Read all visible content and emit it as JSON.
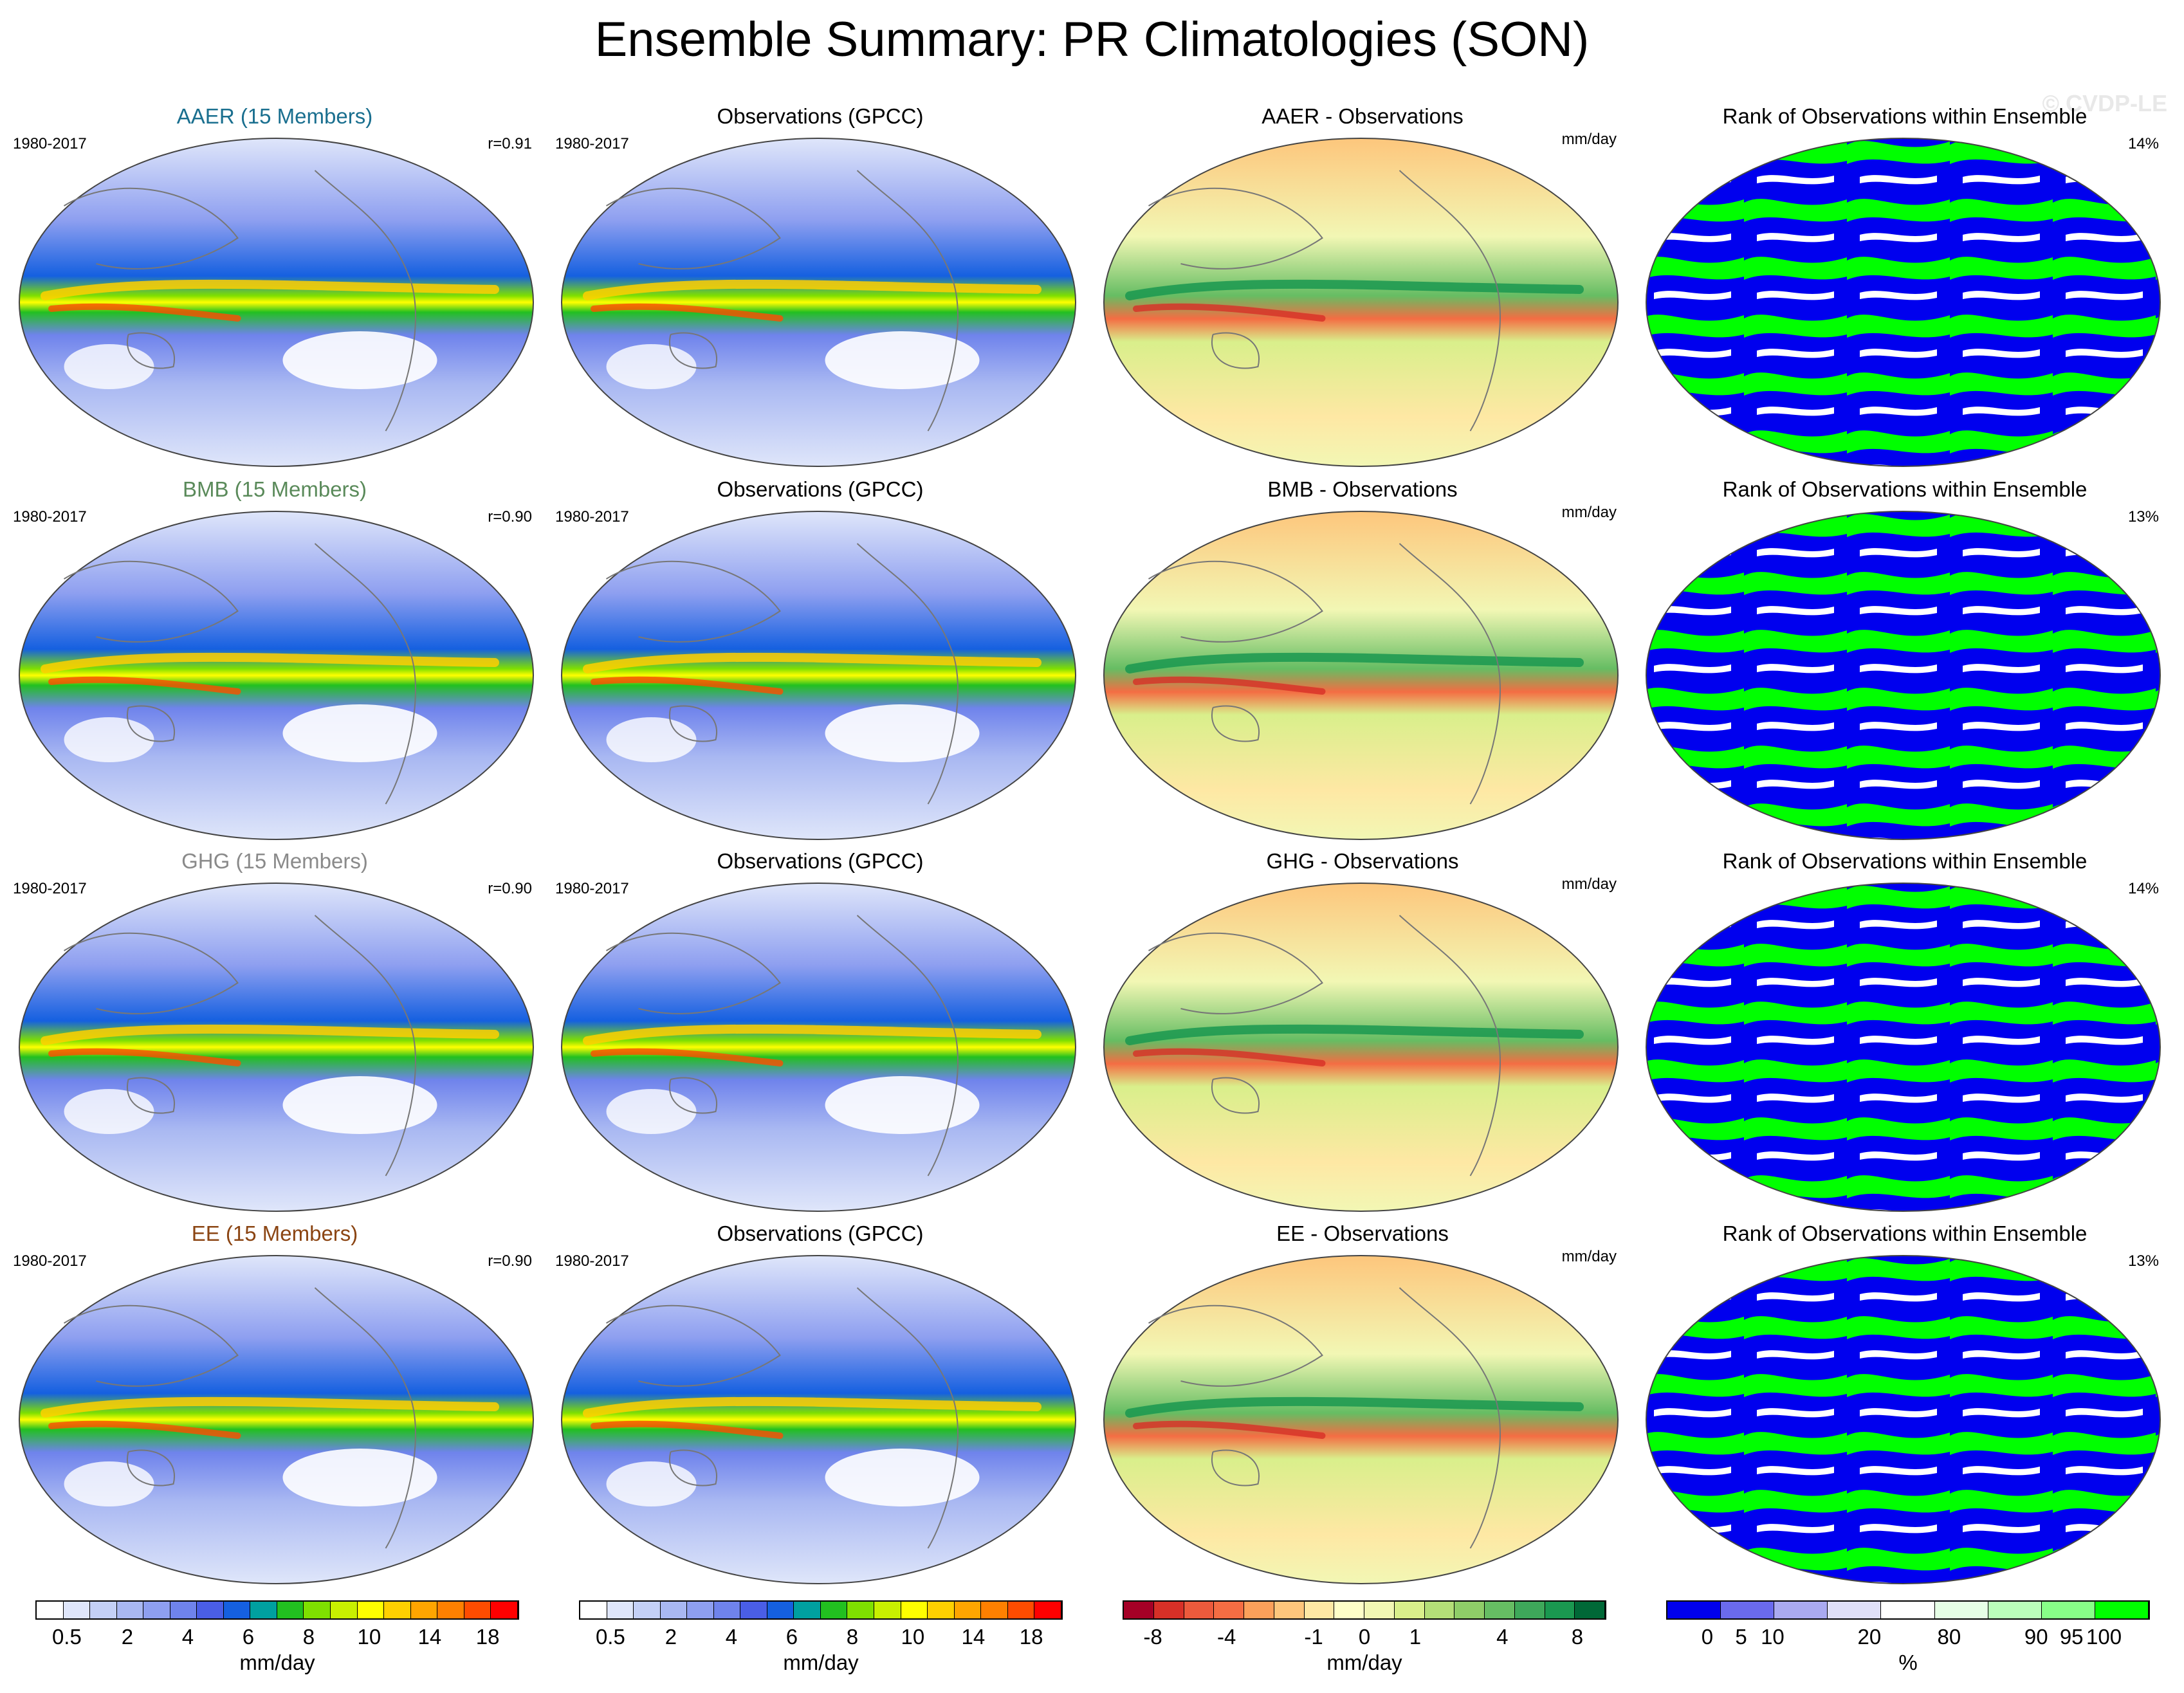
{
  "title": "Ensemble Summary: PR Climatologies (SON)",
  "watermark": "© CVDP-LE",
  "colors": {
    "aaer": "#1a6f8f",
    "bmb": "#5a8a5a",
    "ghg": "#8a8a8a",
    "ee": "#8b4513",
    "rank_low": "#0000ee",
    "rank_high": "#00ff00"
  },
  "rows": [
    {
      "ens_title": "AAER (15 Members)",
      "ens_years": "1980-2017",
      "corr": "r=0.91",
      "obs_title": "Observations (GPCC)",
      "obs_years": "1980-2017",
      "diff_title": "AAER - Observations",
      "diff_units": "mm/day",
      "rank_title": "Rank of Observations within Ensemble",
      "rank_pct": "14%"
    },
    {
      "ens_title": "BMB (15 Members)",
      "ens_years": "1980-2017",
      "corr": "r=0.90",
      "obs_title": "Observations (GPCC)",
      "obs_years": "1980-2017",
      "diff_title": "BMB - Observations",
      "diff_units": "mm/day",
      "rank_title": "Rank of Observations within Ensemble",
      "rank_pct": "13%"
    },
    {
      "ens_title": "GHG (15 Members)",
      "ens_years": "1980-2017",
      "corr": "r=0.90",
      "obs_title": "Observations (GPCC)",
      "obs_years": "1980-2017",
      "diff_title": "GHG - Observations",
      "diff_units": "mm/day",
      "rank_title": "Rank of Observations within Ensemble",
      "rank_pct": "14%"
    },
    {
      "ens_title": "EE (15 Members)",
      "ens_years": "1980-2017",
      "corr": "r=0.90",
      "obs_title": "Observations (GPCC)",
      "obs_years": "1980-2017",
      "diff_title": "EE - Observations",
      "diff_units": "mm/day",
      "rank_title": "Rank of Observations within Ensemble",
      "rank_pct": "13%"
    }
  ],
  "colorbars": {
    "precip": {
      "colors": [
        "#ffffff",
        "#dfe6fa",
        "#c4d0f6",
        "#a9b8f2",
        "#8e9ff0",
        "#6f83ec",
        "#4a5ee6",
        "#1560e0",
        "#00a0a0",
        "#22c020",
        "#7fe000",
        "#c8f000",
        "#ffff00",
        "#ffd000",
        "#ffa500",
        "#ff8000",
        "#ff4c00",
        "#ff0000"
      ],
      "ticks": [
        "0.5",
        "2",
        "4",
        "6",
        "8",
        "10",
        "14",
        "18"
      ],
      "label": "mm/day"
    },
    "diff": {
      "colors": [
        "#a50026",
        "#d73027",
        "#ec5a3c",
        "#f46d43",
        "#fca05a",
        "#fdc67c",
        "#fee8a4",
        "#ffffc8",
        "#f2f7b4",
        "#d9ef8b",
        "#b4de78",
        "#8fcd68",
        "#66bd63",
        "#3ea85a",
        "#1a9850",
        "#006837"
      ],
      "ticks": [
        "-8",
        "-4",
        "-1",
        "0",
        "1",
        "4",
        "8"
      ],
      "label": "mm/day"
    },
    "rank": {
      "colors": [
        "#0000ee",
        "#6a6aee",
        "#aaaaf0",
        "#e0e0f8",
        "#ffffff",
        "#e6ffe6",
        "#bbffbb",
        "#88ff88",
        "#00ff00"
      ],
      "ticks": [
        "0",
        "5",
        "10",
        "20",
        "80",
        "90",
        "95",
        "100"
      ],
      "label": "%"
    }
  }
}
